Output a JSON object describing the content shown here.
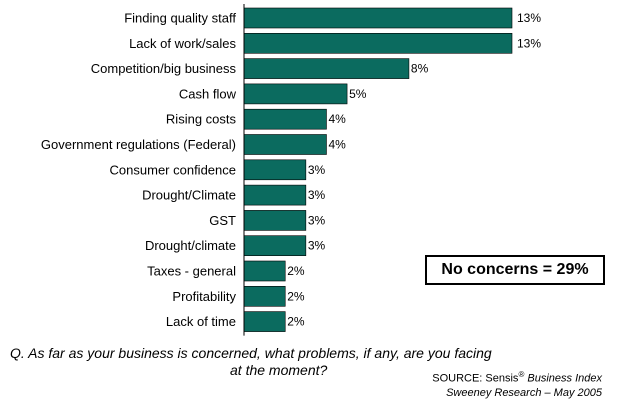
{
  "chart_data": {
    "type": "bar",
    "orientation": "horizontal",
    "categories": [
      "Finding quality staff",
      "Lack of work/sales",
      "Competition/big business",
      "Cash flow",
      "Rising costs",
      "Government regulations (Federal)",
      "Consumer confidence",
      "Drought/Climate",
      "GST",
      "Drought/climate",
      "Taxes - general",
      "Profitability",
      "Lack of time"
    ],
    "values": [
      13,
      13,
      8,
      5,
      4,
      4,
      3,
      3,
      3,
      3,
      2,
      2,
      2
    ],
    "value_labels": [
      "13%",
      "13%",
      "8%",
      "5%",
      "4%",
      "4%",
      "3%",
      "3%",
      "3%",
      "3%",
      "2%",
      "2%",
      "2%"
    ],
    "xlim": [
      0,
      13
    ],
    "grid": false,
    "bar_color": "#0b6b5f"
  },
  "callout": {
    "text": "No concerns = 29%"
  },
  "question": {
    "line1": "Q. As far as your business is concerned, what problems, if any, are you facing",
    "line2": "at the moment?"
  },
  "source": {
    "prefix": "SOURCE: Sensis",
    "reg": "®",
    "title": " Business Index",
    "line2": "Sweeney Research – May 2005"
  }
}
